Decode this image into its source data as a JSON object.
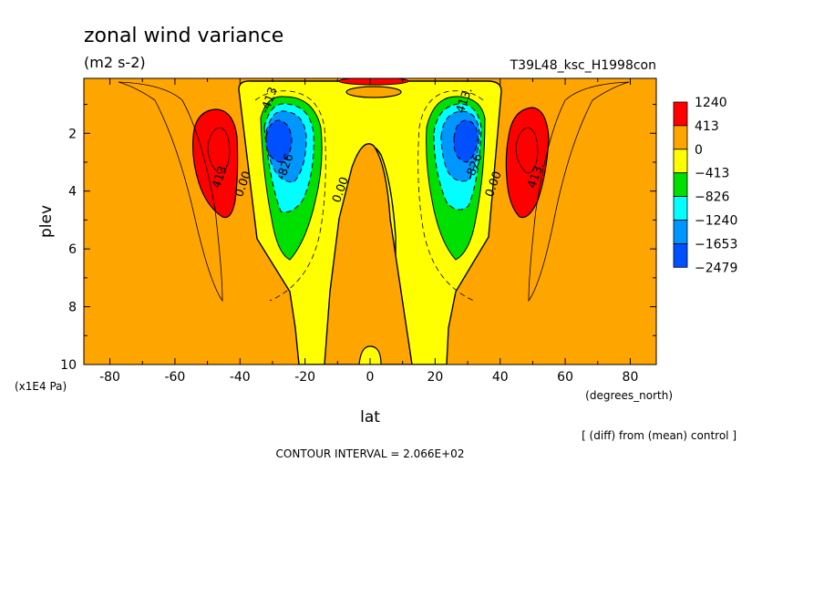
{
  "chart_data": {
    "type": "contour",
    "title": "zonal wind variance",
    "units": "(m2 s-2)",
    "run_label": "T39L48_ksc_H1998con",
    "xlabel": "lat",
    "x_units": "(degrees_north)",
    "ylabel": "plev",
    "y_units": "(x1E4 Pa)",
    "xlim": [
      -88,
      88
    ],
    "ylim": [
      10,
      0.1
    ],
    "x_ticks": [
      -80,
      -60,
      -40,
      -20,
      0,
      20,
      40,
      60,
      80
    ],
    "y_ticks": [
      2,
      4,
      6,
      8,
      10
    ],
    "contour_interval_text": "CONTOUR INTERVAL = 2.066E+02",
    "diff_note": "[ (diff) from (mean) control ]",
    "colorbar": {
      "labels": [
        "1240",
        "413",
        "0",
        "-413",
        "-826",
        "-1240",
        "-1653",
        "-2479"
      ],
      "colors": [
        "#ff0000",
        "#ffa500",
        "#ffff00",
        "#00e000",
        "#00ffff",
        "#0096ff",
        "#0050ff"
      ]
    },
    "contour_labels": [
      {
        "text": "-413",
        "lat": -30,
        "plev": 0.9
      },
      {
        "text": "-826",
        "lat": -25,
        "plev": 3.2
      },
      {
        "text": "0.00",
        "lat": -38,
        "plev": 3.8
      },
      {
        "text": "413.",
        "lat": -45,
        "plev": 3.5
      },
      {
        "text": "0.00",
        "lat": -8,
        "plev": 4.0
      },
      {
        "text": "413.",
        "lat": 30,
        "plev": 0.9
      },
      {
        "text": "-826",
        "lat": 33,
        "plev": 3.2
      },
      {
        "text": "0.00",
        "lat": 39,
        "plev": 3.8
      },
      {
        "text": "413.",
        "lat": 52,
        "plev": 3.5
      }
    ]
  }
}
